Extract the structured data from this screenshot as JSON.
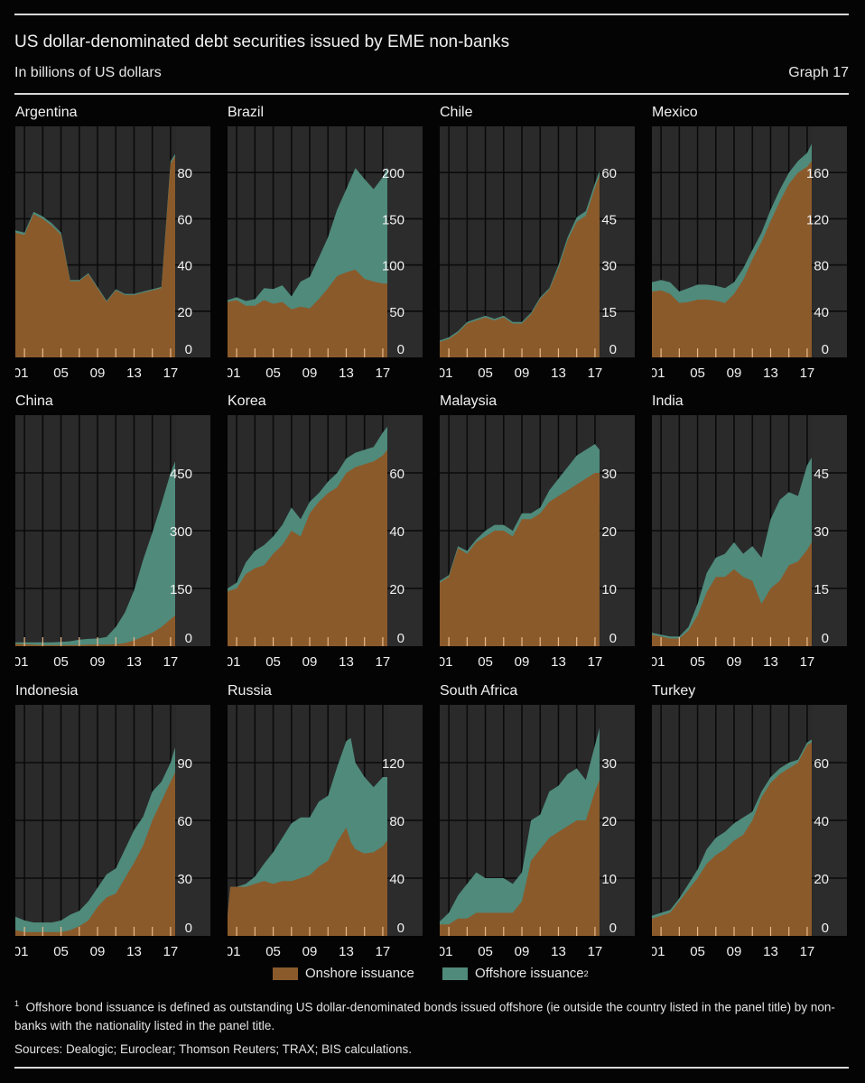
{
  "header": {
    "title": "US dollar-denominated debt securities issued by EME non-banks",
    "subtitle": "In billions of US dollars",
    "graph_number": "Graph 17"
  },
  "colors": {
    "onshore": "#8b5a2b",
    "offshore": "#4f8a7b",
    "plot_bg": "#2a2a2a",
    "axis_bg": "#2c2c2c",
    "tick": "#e8b98a"
  },
  "legend": {
    "onshore_label": "Onshore issuance",
    "offshore_label": "Offshore issuance",
    "offshore_sup": "2"
  },
  "footnotes": {
    "note1_marker": "1",
    "note1": "Offshore bond issuance is defined as outstanding US dollar-denominated bonds issued offshore (ie outside the country listed in the panel title) by non-banks with the nationality listed in the panel title.",
    "sources": "Sources: Dealogic; Euroclear; Thomson Reuters; TRAX; BIS calculations."
  },
  "chart_data": [
    {
      "type": "area",
      "title": "Argentina",
      "x": [
        2000,
        2001,
        2002,
        2003,
        2004,
        2005,
        2006,
        2007,
        2008,
        2009,
        2010,
        2011,
        2012,
        2013,
        2014,
        2015,
        2016,
        2016.5,
        2017,
        2017.5
      ],
      "xticks": [
        "01",
        "05",
        "09",
        "13",
        "17"
      ],
      "yticks": [
        0,
        20,
        40,
        60,
        80
      ],
      "ylim": [
        0,
        100
      ],
      "series": [
        {
          "name": "Onshore issuance",
          "values": [
            54,
            53,
            62,
            60,
            57,
            53,
            33,
            33,
            36,
            30,
            24,
            29,
            27,
            27,
            28,
            29,
            30,
            57,
            84,
            87
          ]
        },
        {
          "name": "Offshore issuance",
          "values": [
            1,
            1,
            1,
            1,
            1,
            1,
            0.5,
            0.5,
            0.5,
            0.5,
            0.5,
            0.5,
            0.5,
            0.5,
            0.5,
            0.5,
            0.5,
            1,
            1,
            1
          ]
        }
      ]
    },
    {
      "type": "area",
      "title": "Brazil",
      "x": [
        2000,
        2001,
        2002,
        2003,
        2004,
        2005,
        2006,
        2007,
        2008,
        2009,
        2010,
        2011,
        2012,
        2013,
        2014,
        2015,
        2016,
        2017,
        2017.5
      ],
      "xticks": [
        "01",
        "05",
        "09",
        "13",
        "17"
      ],
      "yticks": [
        0,
        50,
        100,
        150,
        200
      ],
      "ylim": [
        0,
        250
      ],
      "series": [
        {
          "name": "Onshore issuance",
          "values": [
            60,
            62,
            56,
            56,
            62,
            58,
            60,
            52,
            55,
            53,
            63,
            75,
            88,
            92,
            95,
            85,
            82,
            80,
            80
          ]
        },
        {
          "name": "Offshore issuance",
          "values": [
            2,
            3,
            5,
            7,
            13,
            16,
            18,
            14,
            27,
            34,
            45,
            55,
            72,
            90,
            110,
            108,
            100,
            115,
            126
          ]
        }
      ]
    },
    {
      "type": "area",
      "title": "Chile",
      "x": [
        2000,
        2001,
        2002,
        2003,
        2004,
        2005,
        2006,
        2007,
        2008,
        2009,
        2010,
        2011,
        2012,
        2013,
        2014,
        2015,
        2016,
        2017,
        2017.5
      ],
      "xticks": [
        "01",
        "05",
        "09",
        "13",
        "17"
      ],
      "yticks": [
        0,
        15,
        30,
        45,
        60
      ],
      "ylim": [
        0,
        75
      ],
      "series": [
        {
          "name": "Onshore issuance",
          "values": [
            5,
            6,
            8,
            11,
            12,
            13,
            12,
            13,
            11,
            11,
            14,
            19,
            22,
            29,
            38,
            44,
            46,
            55,
            59
          ]
        },
        {
          "name": "Offshore issuance",
          "values": [
            0.5,
            0.5,
            0.5,
            0.5,
            0.5,
            0.5,
            0.5,
            0.5,
            0.5,
            0.5,
            0.5,
            0.5,
            0.5,
            1,
            1,
            1.5,
            1.5,
            1.5,
            1.5
          ]
        }
      ]
    },
    {
      "type": "area",
      "title": "Mexico",
      "x": [
        2000,
        2001,
        2002,
        2003,
        2004,
        2005,
        2006,
        2007,
        2008,
        2009,
        2010,
        2011,
        2012,
        2013,
        2014,
        2015,
        2016,
        2017,
        2017.5
      ],
      "xticks": [
        "01",
        "05",
        "09",
        "13",
        "17"
      ],
      "yticks": [
        0,
        40,
        80,
        120,
        160
      ],
      "ylim": [
        0,
        200
      ],
      "series": [
        {
          "name": "Onshore issuance",
          "values": [
            57,
            58,
            55,
            47,
            48,
            50,
            50,
            49,
            47,
            55,
            67,
            85,
            100,
            118,
            135,
            150,
            160,
            165,
            170
          ]
        },
        {
          "name": "Offshore issuance",
          "values": [
            8,
            9,
            10,
            10,
            12,
            13,
            13,
            13,
            13,
            10,
            10,
            8,
            8,
            10,
            10,
            10,
            10,
            12,
            15
          ]
        }
      ]
    },
    {
      "type": "area",
      "title": "China",
      "x": [
        2000,
        2001,
        2002,
        2003,
        2004,
        2005,
        2006,
        2007,
        2008,
        2009,
        2010,
        2011,
        2012,
        2013,
        2014,
        2015,
        2016,
        2017,
        2017.5
      ],
      "xticks": [
        "01",
        "05",
        "09",
        "13",
        "17"
      ],
      "yticks": [
        0,
        150,
        300,
        450
      ],
      "ylim": [
        0,
        600
      ],
      "series": [
        {
          "name": "Onshore issuance",
          "values": [
            6,
            5,
            4,
            3,
            3,
            3,
            3,
            3,
            4,
            4,
            4,
            5,
            8,
            15,
            25,
            35,
            50,
            70,
            80
          ]
        },
        {
          "name": "Offshore issuance",
          "values": [
            4,
            5,
            6,
            7,
            7,
            8,
            10,
            14,
            15,
            16,
            20,
            45,
            80,
            130,
            200,
            260,
            320,
            380,
            400
          ]
        }
      ]
    },
    {
      "type": "area",
      "title": "Korea",
      "x": [
        2000,
        2001,
        2002,
        2003,
        2004,
        2005,
        2006,
        2007,
        2008,
        2009,
        2010,
        2011,
        2012,
        2013,
        2014,
        2015,
        2016,
        2017,
        2017.5
      ],
      "xticks": [
        "01",
        "05",
        "09",
        "13",
        "17"
      ],
      "yticks": [
        0,
        20,
        40,
        60
      ],
      "ylim": [
        0,
        80
      ],
      "series": [
        {
          "name": "Onshore issuance",
          "values": [
            19,
            20,
            25,
            27,
            28,
            32,
            35,
            40,
            38,
            46,
            50,
            53,
            55,
            60,
            62,
            63,
            64,
            66,
            68
          ]
        },
        {
          "name": "Offshore issuance",
          "values": [
            1,
            2,
            4,
            6,
            7,
            6,
            7,
            8,
            6,
            4,
            3,
            4,
            5,
            5,
            5,
            5,
            5,
            8,
            8
          ]
        }
      ]
    },
    {
      "type": "area",
      "title": "Malaysia",
      "x": [
        2000,
        2001,
        2002,
        2003,
        2004,
        2005,
        2006,
        2007,
        2008,
        2009,
        2010,
        2011,
        2012,
        2013,
        2014,
        2015,
        2016,
        2017,
        2017.5
      ],
      "xticks": [
        "01",
        "05",
        "09",
        "13",
        "17"
      ],
      "yticks": [
        0,
        10,
        20,
        30
      ],
      "ylim": [
        0,
        40
      ],
      "series": [
        {
          "name": "Onshore issuance",
          "values": [
            11,
            12,
            17,
            16,
            18,
            19,
            20,
            20,
            19,
            22,
            22,
            23,
            25,
            26,
            27,
            28,
            29,
            30,
            30
          ]
        },
        {
          "name": "Offshore issuance",
          "values": [
            0.3,
            0.3,
            0.3,
            0.5,
            0.5,
            1,
            1,
            1,
            1,
            1,
            1,
            1,
            2,
            3,
            4,
            5,
            5,
            5,
            4
          ]
        }
      ]
    },
    {
      "type": "area",
      "title": "India",
      "x": [
        2000,
        2001,
        2002,
        2003,
        2004,
        2005,
        2006,
        2007,
        2008,
        2009,
        2010,
        2011,
        2012,
        2013,
        2014,
        2015,
        2016,
        2017,
        2017.5
      ],
      "xticks": [
        "01",
        "05",
        "09",
        "13",
        "17"
      ],
      "yticks": [
        0,
        15,
        30,
        45
      ],
      "ylim": [
        0,
        60
      ],
      "series": [
        {
          "name": "Onshore issuance",
          "values": [
            3,
            2.5,
            2,
            2,
            4,
            8,
            14,
            18,
            18,
            20,
            18,
            17,
            11,
            15,
            17,
            21,
            22,
            25,
            27
          ]
        },
        {
          "name": "Offshore issuance",
          "values": [
            0.5,
            0.5,
            0.5,
            0.5,
            1,
            3,
            5,
            5,
            6,
            7,
            6,
            9,
            12,
            18,
            21,
            19,
            17,
            22,
            22
          ]
        }
      ]
    },
    {
      "type": "area",
      "title": "Indonesia",
      "x": [
        2000,
        2001,
        2002,
        2003,
        2004,
        2005,
        2006,
        2007,
        2008,
        2009,
        2010,
        2011,
        2012,
        2013,
        2014,
        2015,
        2016,
        2017,
        2017.5
      ],
      "xticks": [
        "01",
        "05",
        "09",
        "13",
        "17"
      ],
      "yticks": [
        0,
        30,
        60,
        90
      ],
      "ylim": [
        0,
        120
      ],
      "series": [
        {
          "name": "Onshore issuance",
          "values": [
            3,
            2,
            2,
            2,
            2,
            2,
            3,
            5,
            8,
            15,
            20,
            22,
            30,
            38,
            47,
            60,
            70,
            80,
            85
          ]
        },
        {
          "name": "Offshore issuance",
          "values": [
            7,
            6,
            5,
            5,
            5,
            6,
            8,
            8,
            10,
            10,
            12,
            13,
            15,
            17,
            15,
            15,
            10,
            10,
            13
          ]
        }
      ]
    },
    {
      "type": "area",
      "title": "Russia",
      "x": [
        2000,
        2000.3,
        2001,
        2002,
        2003,
        2004,
        2005,
        2006,
        2007,
        2008,
        2009,
        2010,
        2011,
        2012,
        2013,
        2013.5,
        2014,
        2015,
        2016,
        2017,
        2017.5
      ],
      "xticks": [
        "01",
        "05",
        "09",
        "13",
        "17"
      ],
      "yticks": [
        0,
        40,
        80,
        120
      ],
      "ylim": [
        0,
        160
      ],
      "series": [
        {
          "name": "Onshore issuance",
          "values": [
            14,
            34,
            34,
            34,
            36,
            38,
            36,
            38,
            38,
            40,
            42,
            48,
            52,
            65,
            75,
            65,
            60,
            57,
            58,
            62,
            66
          ]
        },
        {
          "name": "Offshore issuance",
          "values": [
            0,
            0,
            0,
            2,
            5,
            12,
            22,
            30,
            40,
            42,
            40,
            45,
            45,
            52,
            60,
            72,
            60,
            53,
            45,
            48,
            44
          ]
        }
      ]
    },
    {
      "type": "area",
      "title": "South Africa",
      "x": [
        2000,
        2001,
        2002,
        2003,
        2004,
        2005,
        2006,
        2007,
        2008,
        2009,
        2010,
        2011,
        2012,
        2013,
        2014,
        2015,
        2016,
        2017,
        2017.5
      ],
      "xticks": [
        "01",
        "05",
        "09",
        "13",
        "17"
      ],
      "yticks": [
        0,
        10,
        20,
        30
      ],
      "ylim": [
        0,
        40
      ],
      "series": [
        {
          "name": "Onshore issuance",
          "values": [
            2,
            2,
            3,
            3,
            4,
            4,
            4,
            4,
            4,
            6,
            13,
            15,
            17,
            18,
            19,
            20,
            20,
            25,
            27
          ]
        },
        {
          "name": "Offshore issuance",
          "values": [
            0.5,
            2,
            4,
            6,
            7,
            6,
            6,
            6,
            5,
            5,
            7,
            6,
            8,
            8,
            9,
            9,
            7,
            8,
            9
          ]
        }
      ]
    },
    {
      "type": "area",
      "title": "Turkey",
      "x": [
        2000,
        2001,
        2002,
        2003,
        2004,
        2005,
        2006,
        2007,
        2008,
        2009,
        2010,
        2011,
        2012,
        2013,
        2014,
        2015,
        2016,
        2017,
        2017.5
      ],
      "xticks": [
        "01",
        "05",
        "09",
        "13",
        "17"
      ],
      "yticks": [
        0,
        20,
        40,
        60
      ],
      "ylim": [
        0,
        80
      ],
      "series": [
        {
          "name": "Onshore issuance",
          "values": [
            6,
            7,
            8,
            12,
            16,
            20,
            25,
            28,
            30,
            33,
            35,
            40,
            48,
            53,
            56,
            58,
            60,
            66,
            67
          ]
        },
        {
          "name": "Offshore issuance",
          "values": [
            1,
            1,
            1,
            1,
            2,
            3,
            5,
            6,
            6,
            6,
            6,
            3,
            2,
            2,
            2,
            2,
            1,
            1,
            1
          ]
        }
      ]
    }
  ]
}
